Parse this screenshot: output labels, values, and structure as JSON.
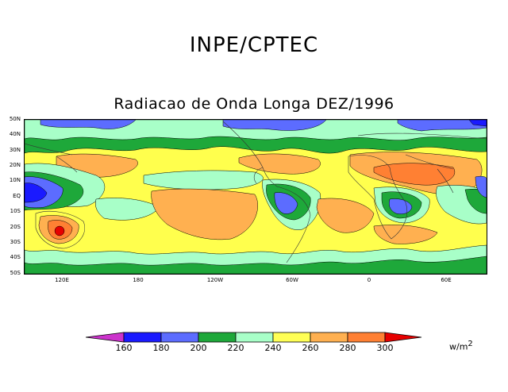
{
  "header": {
    "title": "INPE/CPTEC"
  },
  "map": {
    "title": "Radiacao de Onda Longa DEZ/1996",
    "lat_labels": [
      "50N",
      "40N",
      "30N",
      "20N",
      "10N",
      "EQ",
      "10S",
      "20S",
      "30S",
      "40S",
      "50S"
    ],
    "lon_labels": [
      "120E",
      "180",
      "120W",
      "60W",
      "0",
      "60E"
    ],
    "colors": {
      "below_160": "#cc33cc",
      "160_180": "#1a1aff",
      "180_200": "#5c6cff",
      "200_220": "#1ea83a",
      "220_240": "#a8ffc8",
      "240_260": "#ffff55",
      "260_280": "#ffb050",
      "280_300": "#ff8033",
      "above_300": "#e60000"
    }
  },
  "colorbar": {
    "levels": [
      "160",
      "180",
      "200",
      "220",
      "240",
      "260",
      "280",
      "300"
    ],
    "colors": [
      "#cc33cc",
      "#1a1aff",
      "#5c6cff",
      "#1ea83a",
      "#a8ffc8",
      "#ffff55",
      "#ffb050",
      "#ff8033",
      "#e60000"
    ],
    "units": "w/m",
    "units_exp": "2"
  }
}
